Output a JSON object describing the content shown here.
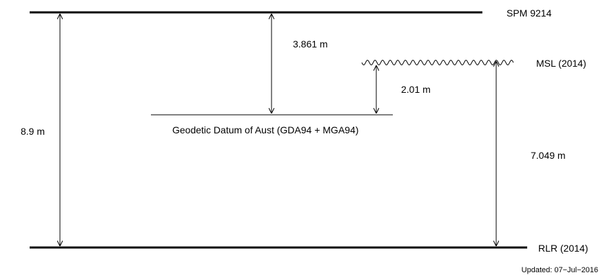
{
  "levels": {
    "spm": {
      "label": "SPM 9214"
    },
    "msl": {
      "label": "MSL (2014)"
    },
    "datum": {
      "label": "Geodetic Datum of Aust (GDA94 + MGA94)"
    },
    "rlr": {
      "label": "RLR (2014)"
    }
  },
  "measurements": {
    "spm_to_rlr": "8.9 m",
    "spm_to_datum": "3.861 m",
    "msl_to_datum": "2.01 m",
    "msl_to_rlr": "7.049 m"
  },
  "footer": {
    "updated": "Updated: 07−Jul−2016"
  }
}
